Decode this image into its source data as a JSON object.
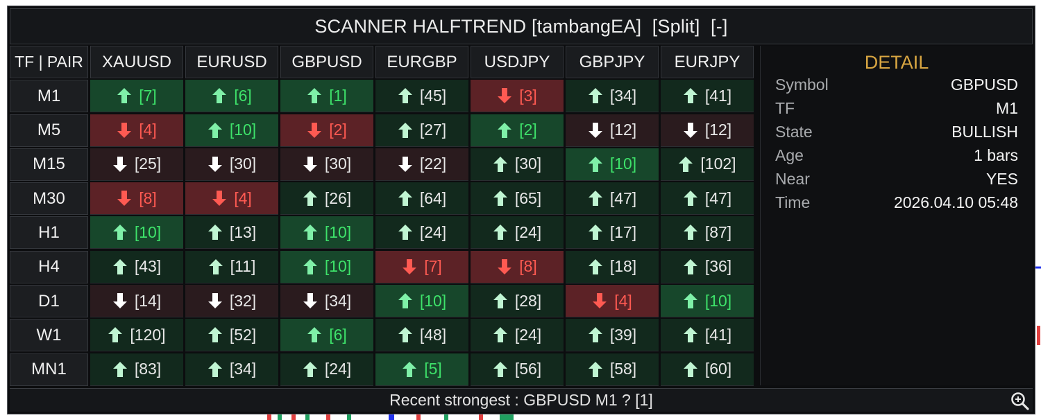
{
  "title": {
    "text": "SCANNER HALFTREND [tambangEA]",
    "split_label": "[Split]",
    "minimize_label": "[-]"
  },
  "grid": {
    "corner": "TF | PAIR",
    "pairs": [
      "XAUUSD",
      "EURUSD",
      "GBPUSD",
      "EURGBP",
      "USDJPY",
      "GBPJPY",
      "EURJPY"
    ],
    "rows": [
      {
        "tf": "M1",
        "cells": [
          {
            "dir": "up",
            "val": "[7]",
            "hl": true
          },
          {
            "dir": "up",
            "val": "[6]",
            "hl": true
          },
          {
            "dir": "up",
            "val": "[1]",
            "hl": true
          },
          {
            "dir": "up",
            "val": "[45]",
            "hl": false
          },
          {
            "dir": "down",
            "val": "[3]",
            "hl": true
          },
          {
            "dir": "up",
            "val": "[34]",
            "hl": false
          },
          {
            "dir": "up",
            "val": "[41]",
            "hl": false
          }
        ]
      },
      {
        "tf": "M5",
        "cells": [
          {
            "dir": "down",
            "val": "[4]",
            "hl": true
          },
          {
            "dir": "up",
            "val": "[10]",
            "hl": true
          },
          {
            "dir": "down",
            "val": "[2]",
            "hl": true
          },
          {
            "dir": "up",
            "val": "[27]",
            "hl": false
          },
          {
            "dir": "up",
            "val": "[2]",
            "hl": true
          },
          {
            "dir": "down",
            "val": "[12]",
            "hl": false
          },
          {
            "dir": "down",
            "val": "[12]",
            "hl": false
          }
        ]
      },
      {
        "tf": "M15",
        "cells": [
          {
            "dir": "down",
            "val": "[25]",
            "hl": false
          },
          {
            "dir": "down",
            "val": "[30]",
            "hl": false
          },
          {
            "dir": "down",
            "val": "[30]",
            "hl": false
          },
          {
            "dir": "down",
            "val": "[22]",
            "hl": false
          },
          {
            "dir": "up",
            "val": "[30]",
            "hl": false
          },
          {
            "dir": "up",
            "val": "[10]",
            "hl": true
          },
          {
            "dir": "up",
            "val": "[102]",
            "hl": false
          }
        ]
      },
      {
        "tf": "M30",
        "cells": [
          {
            "dir": "down",
            "val": "[8]",
            "hl": true
          },
          {
            "dir": "down",
            "val": "[4]",
            "hl": true
          },
          {
            "dir": "up",
            "val": "[26]",
            "hl": false
          },
          {
            "dir": "up",
            "val": "[64]",
            "hl": false
          },
          {
            "dir": "up",
            "val": "[65]",
            "hl": false
          },
          {
            "dir": "up",
            "val": "[47]",
            "hl": false
          },
          {
            "dir": "up",
            "val": "[47]",
            "hl": false
          }
        ]
      },
      {
        "tf": "H1",
        "cells": [
          {
            "dir": "up",
            "val": "[10]",
            "hl": true
          },
          {
            "dir": "up",
            "val": "[13]",
            "hl": false
          },
          {
            "dir": "up",
            "val": "[10]",
            "hl": true
          },
          {
            "dir": "up",
            "val": "[24]",
            "hl": false
          },
          {
            "dir": "up",
            "val": "[24]",
            "hl": false
          },
          {
            "dir": "up",
            "val": "[17]",
            "hl": false
          },
          {
            "dir": "up",
            "val": "[87]",
            "hl": false
          }
        ]
      },
      {
        "tf": "H4",
        "cells": [
          {
            "dir": "up",
            "val": "[43]",
            "hl": false
          },
          {
            "dir": "up",
            "val": "[11]",
            "hl": false
          },
          {
            "dir": "up",
            "val": "[10]",
            "hl": true
          },
          {
            "dir": "down",
            "val": "[7]",
            "hl": true
          },
          {
            "dir": "down",
            "val": "[8]",
            "hl": true
          },
          {
            "dir": "up",
            "val": "[18]",
            "hl": false
          },
          {
            "dir": "up",
            "val": "[36]",
            "hl": false
          }
        ]
      },
      {
        "tf": "D1",
        "cells": [
          {
            "dir": "down",
            "val": "[14]",
            "hl": false
          },
          {
            "dir": "down",
            "val": "[32]",
            "hl": false
          },
          {
            "dir": "down",
            "val": "[34]",
            "hl": false
          },
          {
            "dir": "up",
            "val": "[10]",
            "hl": true
          },
          {
            "dir": "up",
            "val": "[28]",
            "hl": false
          },
          {
            "dir": "down",
            "val": "[4]",
            "hl": true
          },
          {
            "dir": "up",
            "val": "[10]",
            "hl": true
          }
        ]
      },
      {
        "tf": "W1",
        "cells": [
          {
            "dir": "up",
            "val": "[120]",
            "hl": false
          },
          {
            "dir": "up",
            "val": "[52]",
            "hl": false
          },
          {
            "dir": "up",
            "val": "[6]",
            "hl": true
          },
          {
            "dir": "up",
            "val": "[48]",
            "hl": false
          },
          {
            "dir": "up",
            "val": "[24]",
            "hl": false
          },
          {
            "dir": "up",
            "val": "[39]",
            "hl": false
          },
          {
            "dir": "up",
            "val": "[41]",
            "hl": false
          }
        ]
      },
      {
        "tf": "MN1",
        "cells": [
          {
            "dir": "up",
            "val": "[83]",
            "hl": false
          },
          {
            "dir": "up",
            "val": "[34]",
            "hl": false
          },
          {
            "dir": "up",
            "val": "[24]",
            "hl": false
          },
          {
            "dir": "up",
            "val": "[5]",
            "hl": true
          },
          {
            "dir": "up",
            "val": "[56]",
            "hl": false
          },
          {
            "dir": "up",
            "val": "[58]",
            "hl": false
          },
          {
            "dir": "up",
            "val": "[60]",
            "hl": false
          }
        ]
      }
    ]
  },
  "detail": {
    "title": "DETAIL",
    "fields": [
      {
        "label": "Symbol",
        "value": "GBPUSD"
      },
      {
        "label": "TF",
        "value": "M1"
      },
      {
        "label": "State",
        "value": "BULLISH"
      },
      {
        "label": "Age",
        "value": "1 bars"
      },
      {
        "label": "Near",
        "value": "YES"
      },
      {
        "label": "Time",
        "value": "2026.04.10 05:48"
      }
    ]
  },
  "status": {
    "text": "Recent strongest : GBPUSD M1 ? [1]",
    "zoom_icon": "zoom-in-icon"
  },
  "colors": {
    "up_bg": "#12291d",
    "up_bg_hl": "#17472b",
    "down_bg": "#2a1b1e",
    "down_bg_hl": "#5c2226",
    "up_arrow": "#7ff0a8",
    "down_arrow": "#ff5a52",
    "neutral_arrow": "#ffffff",
    "up_text_hl": "#3ee26a",
    "down_text_hl": "#ff5a52",
    "detail_title": "#d9a642"
  }
}
